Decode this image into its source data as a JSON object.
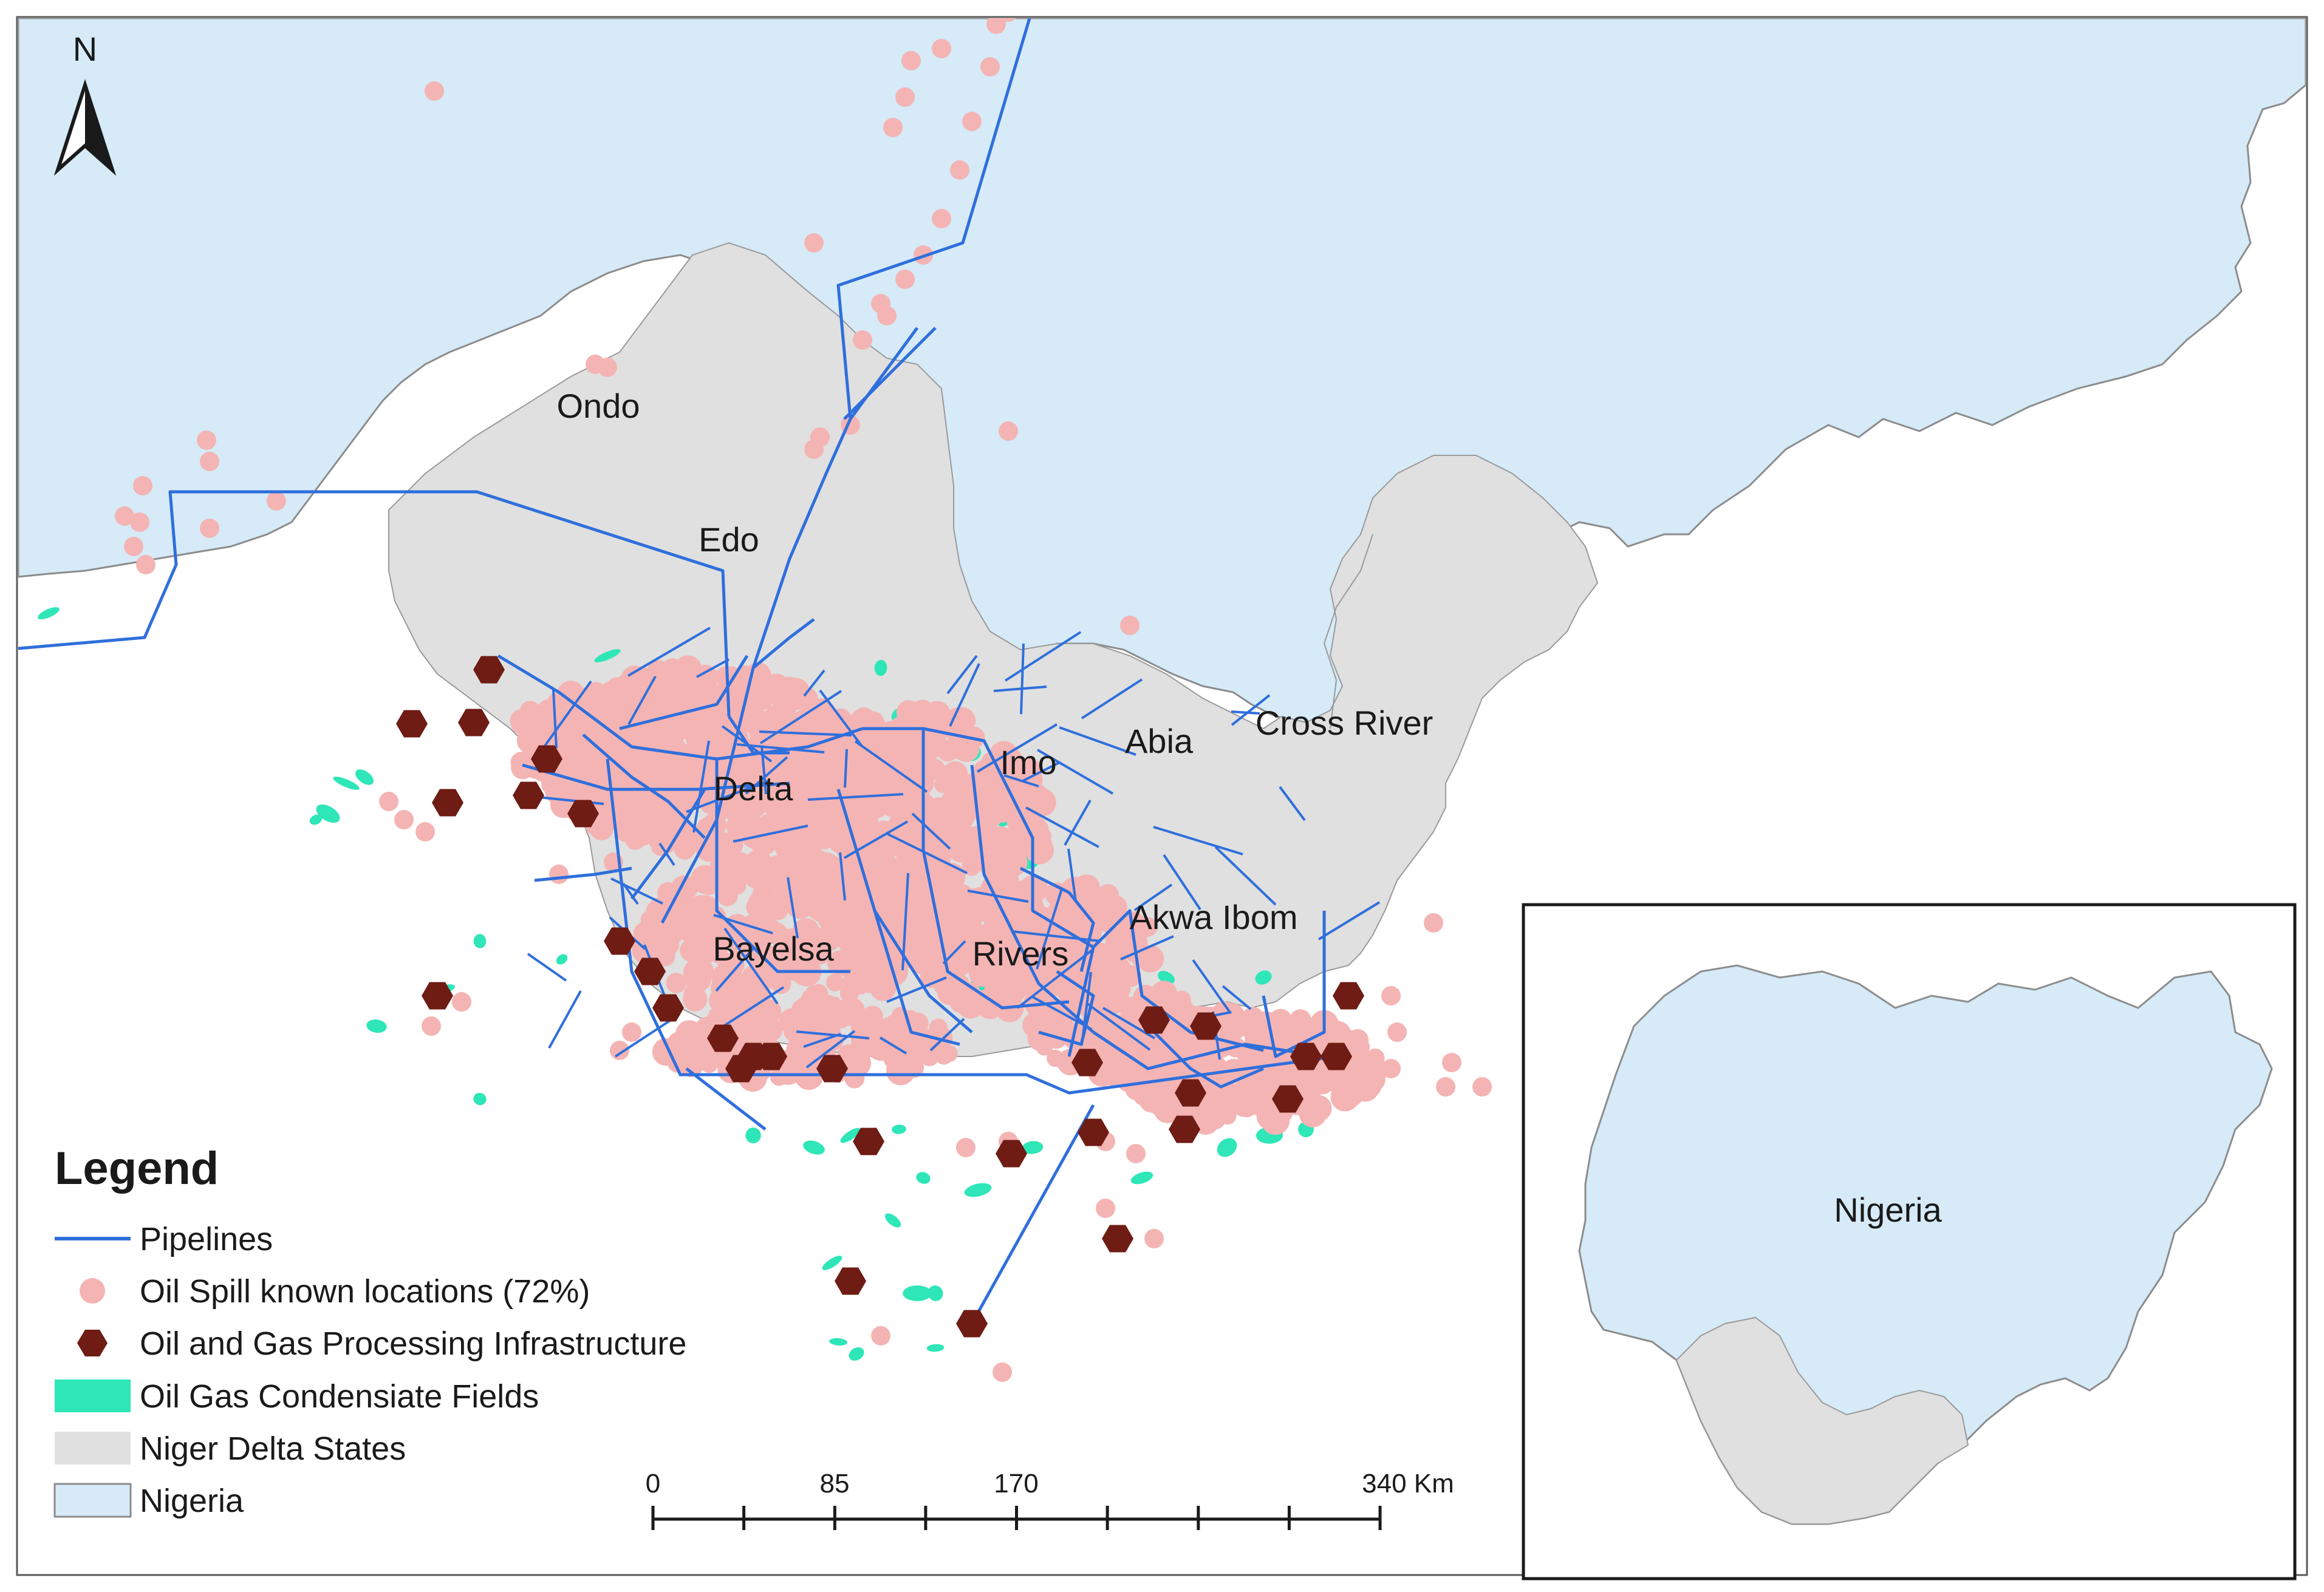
{
  "colors": {
    "nigeria": "#d6eaf8",
    "delta_states": "#e0e0e0",
    "boundary": "#8c8c8c",
    "pipeline": "#2f6fdc",
    "oil_spill": "#f4b4b4",
    "infrastructure": "#6e1c14",
    "condensate": "#2ee6b8",
    "ocean": "#ffffff"
  },
  "north_arrow": {
    "label": "N"
  },
  "state_labels": [
    {
      "key": "ondo",
      "text": "Ondo"
    },
    {
      "key": "edo",
      "text": "Edo"
    },
    {
      "key": "delta",
      "text": "Delta"
    },
    {
      "key": "imo",
      "text": "Imo"
    },
    {
      "key": "abia",
      "text": "Abia"
    },
    {
      "key": "cross-river",
      "text": "Cross River"
    },
    {
      "key": "bayelsa",
      "text": "Bayelsa"
    },
    {
      "key": "rivers",
      "text": "Rivers"
    },
    {
      "key": "akwa-ibom",
      "text": "Akwa Ibom"
    }
  ],
  "legend": {
    "title": "Legend",
    "items": [
      {
        "key": "pipelines",
        "symbol": "line",
        "label": "Pipelines"
      },
      {
        "key": "oil-spill",
        "symbol": "dot",
        "label": "Oil Spill known locations (72%)"
      },
      {
        "key": "infrastructure",
        "symbol": "hexagon",
        "label": "Oil and Gas Processing Infrastructure"
      },
      {
        "key": "condensate",
        "symbol": "swatch-green",
        "label": "Oil Gas Condensiate Fields"
      },
      {
        "key": "delta-states",
        "symbol": "swatch-grey",
        "label": "Niger Delta States"
      },
      {
        "key": "nigeria",
        "symbol": "swatch-blue",
        "label": "Nigeria"
      }
    ]
  },
  "scale_bar": {
    "unit": "Km",
    "tick_labels": [
      "0",
      "85",
      "170",
      "340 Km"
    ]
  },
  "inset": {
    "label": "Nigeria"
  }
}
